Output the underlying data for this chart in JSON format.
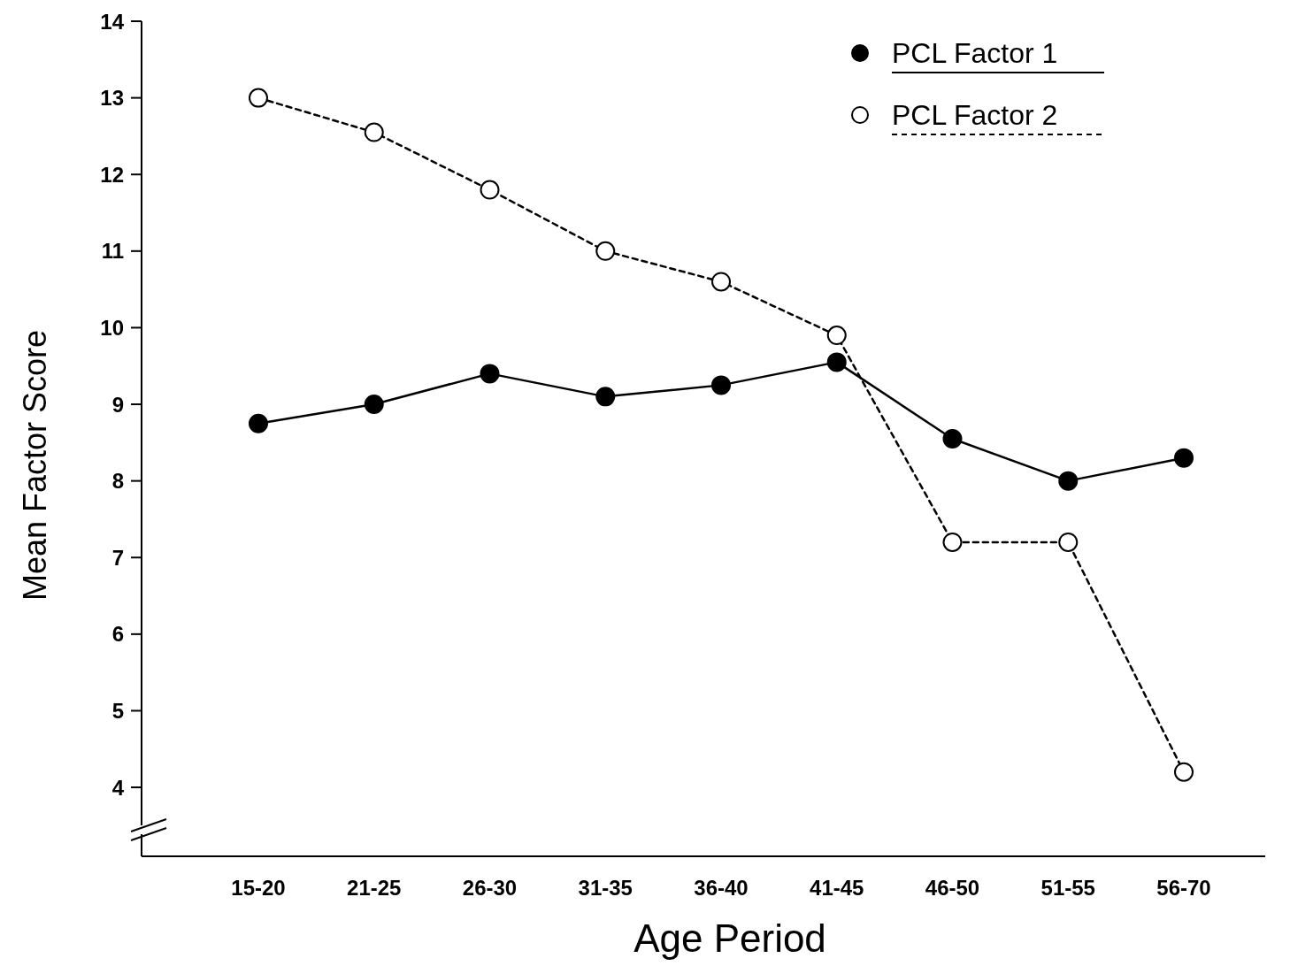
{
  "chart_data": {
    "type": "line",
    "xlabel": "Age Period",
    "ylabel": "Mean Factor Score",
    "categories": [
      "15-20",
      "21-25",
      "26-30",
      "31-35",
      "36-40",
      "41-45",
      "46-50",
      "51-55",
      "56-70"
    ],
    "series": [
      {
        "name": "PCL Factor 1",
        "color": "#000000",
        "line_style": "solid",
        "marker": "circle",
        "values": [
          8.75,
          9.0,
          9.4,
          9.1,
          9.25,
          9.55,
          8.55,
          8.0,
          8.3
        ]
      },
      {
        "name": "PCL Factor 2",
        "color": "#000000",
        "line_style": "dashed",
        "marker": "circle",
        "values": [
          13.0,
          12.55,
          11.8,
          11.0,
          10.6,
          9.9,
          7.2,
          7.2,
          4.2
        ]
      }
    ],
    "ylim": [
      3.1,
      14
    ],
    "yticks": [
      4,
      5,
      6,
      7,
      8,
      9,
      10,
      11,
      12,
      13,
      14
    ],
    "grid": false,
    "legend": "top right"
  }
}
